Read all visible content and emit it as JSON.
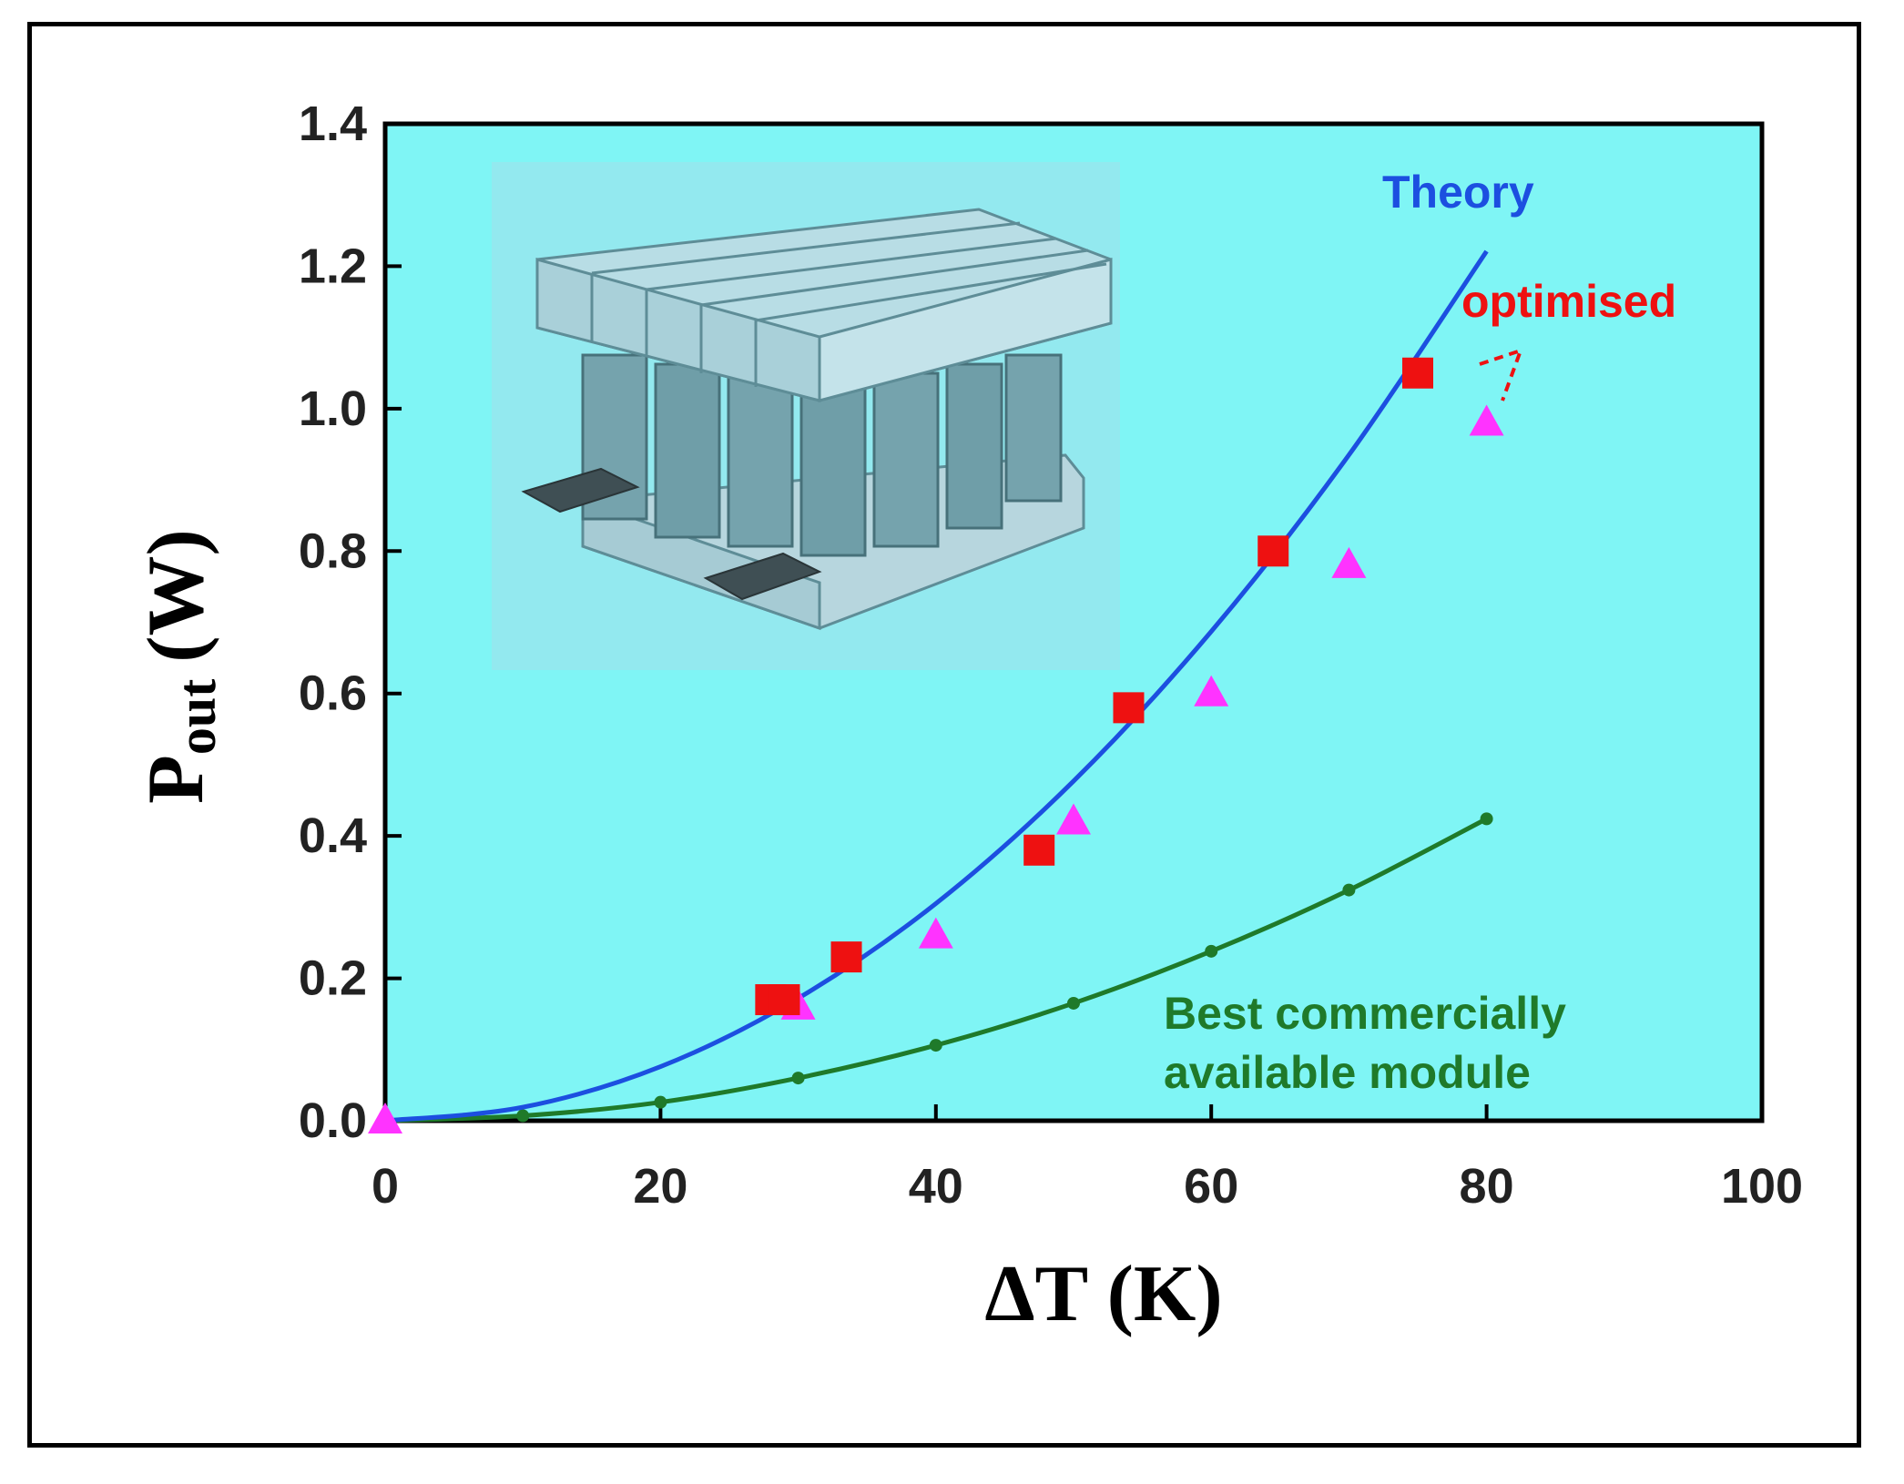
{
  "chart_data": {
    "type": "scatter",
    "title": "",
    "xlabel": "ΔT (K)",
    "ylabel_main": "P",
    "ylabel_sub": "out",
    "ylabel_unit": "(W)",
    "xlim": [
      0,
      100
    ],
    "ylim": [
      0,
      1.4
    ],
    "x_ticks": [
      "0",
      "20",
      "40",
      "60",
      "80",
      "100"
    ],
    "y_ticks": [
      "0.0",
      "0.2",
      "0.4",
      "0.6",
      "0.8",
      "1.0",
      "1.2",
      "1.4"
    ],
    "grid": false,
    "plot_background": "#7ff5f5",
    "series": [
      {
        "name": "Theory",
        "kind": "line",
        "color": "#1c4fe0",
        "x": [
          0,
          10,
          20,
          30,
          40,
          50,
          60,
          70,
          80
        ],
        "y": [
          0,
          0.019,
          0.076,
          0.172,
          0.305,
          0.477,
          0.687,
          0.935,
          1.221
        ]
      },
      {
        "name": "optimised (squares)",
        "kind": "marker-square",
        "color": "#ee1111",
        "x": [
          28,
          29,
          33.5,
          47.5,
          54,
          64.5,
          75
        ],
        "y": [
          0.17,
          0.17,
          0.23,
          0.38,
          0.58,
          0.8,
          1.05
        ]
      },
      {
        "name": "optimised (triangles)",
        "kind": "marker-triangle",
        "color": "#ff33ff",
        "x": [
          0,
          30,
          40,
          50,
          60,
          70,
          80
        ],
        "y": [
          0.0,
          0.16,
          0.26,
          0.42,
          0.6,
          0.78,
          0.98
        ]
      },
      {
        "name": "Best commercially available module",
        "kind": "line-dots",
        "color": "#1f7a2a",
        "x": [
          0,
          10,
          20,
          30,
          40,
          50,
          60,
          70,
          80
        ],
        "y": [
          0,
          0.007,
          0.026,
          0.06,
          0.106,
          0.165,
          0.238,
          0.324,
          0.424
        ]
      }
    ],
    "annotations": {
      "theory": "Theory",
      "optimised": "optimised",
      "best_line1": "Best commercially",
      "best_line2": "available module"
    },
    "inset": "thermoelectric-module-illustration"
  }
}
